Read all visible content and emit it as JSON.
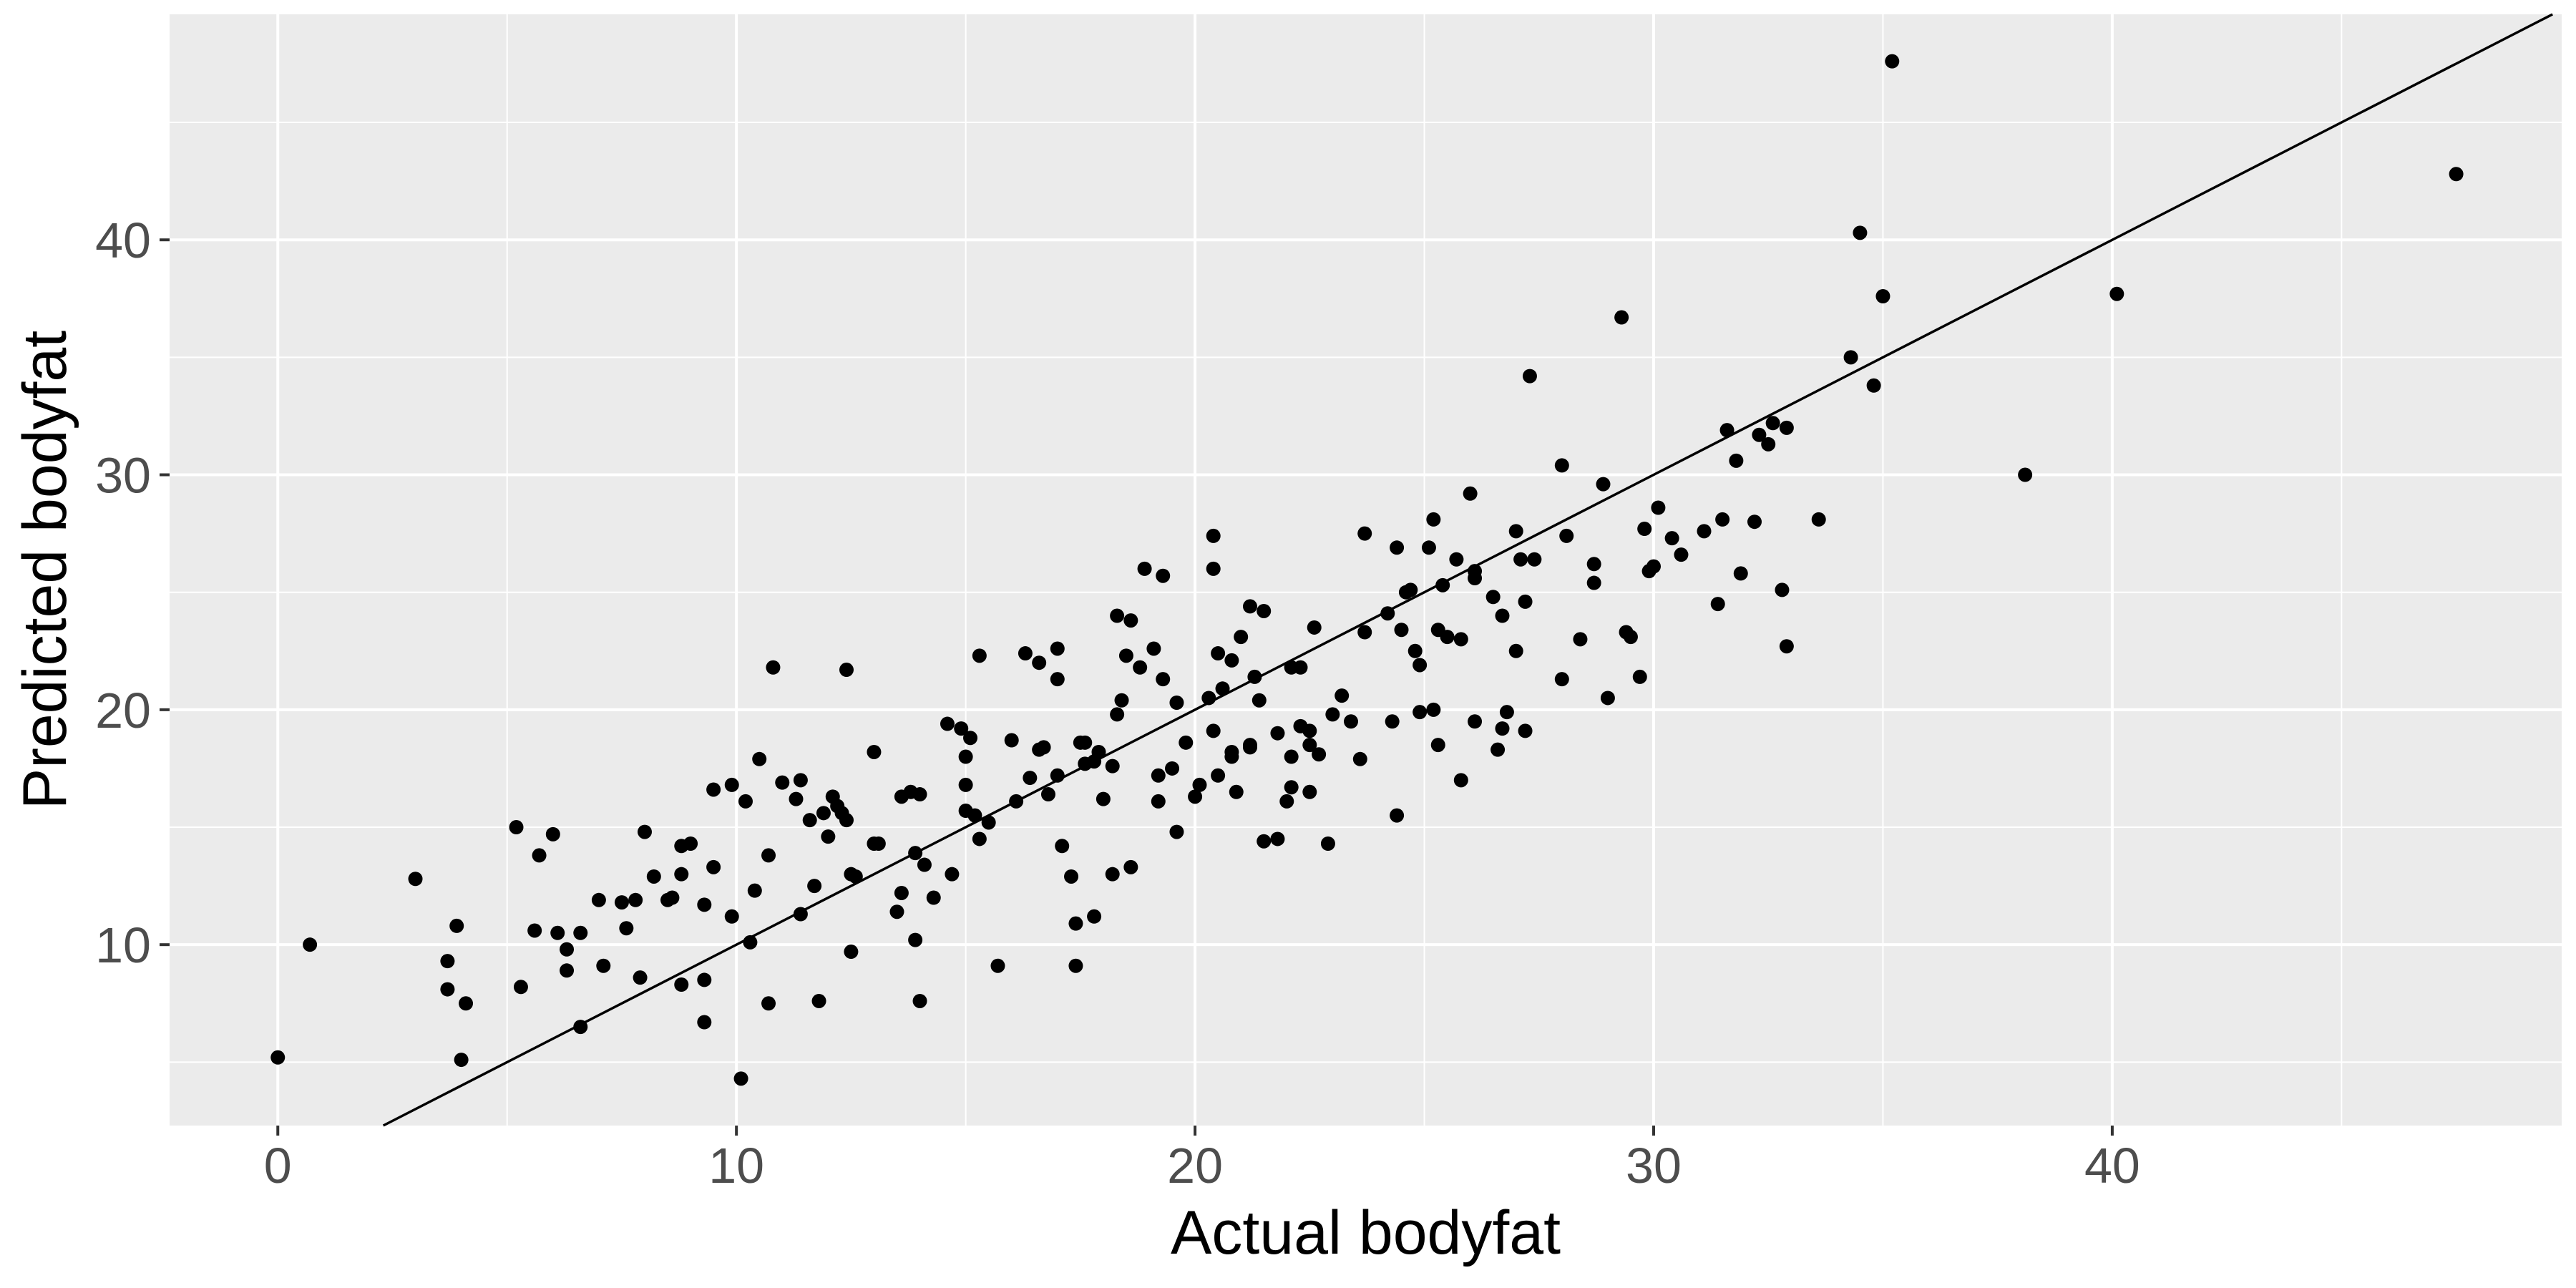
{
  "chart_data": {
    "type": "scatter",
    "xlabel": "Actual bodyfat",
    "ylabel": "Predicted bodyfat",
    "xlim": [
      -2.36,
      49.8
    ],
    "ylim": [
      2.3,
      49.6
    ],
    "x_ticks": [
      0,
      10,
      20,
      30,
      40
    ],
    "y_ticks": [
      10,
      20,
      30,
      40
    ],
    "x_tick_labels": [
      "0",
      "10",
      "20",
      "30",
      "40"
    ],
    "y_tick_labels": [
      "10",
      "20",
      "30",
      "40"
    ],
    "grid": true,
    "reference_line": {
      "slope": 1,
      "intercept": 0
    },
    "colors": {
      "panel": "#EBEBEB",
      "grid": "#FFFFFF",
      "point": "#000000",
      "line": "#000000",
      "tick_text": "#4D4D4D"
    },
    "points": [
      [
        0.0,
        5.2
      ],
      [
        0.7,
        10.0
      ],
      [
        3.0,
        12.8
      ],
      [
        3.7,
        9.3
      ],
      [
        3.7,
        8.1
      ],
      [
        3.9,
        10.8
      ],
      [
        4.0,
        5.1
      ],
      [
        4.1,
        7.5
      ],
      [
        5.2,
        15.0
      ],
      [
        5.3,
        8.2
      ],
      [
        5.6,
        10.6
      ],
      [
        5.7,
        13.8
      ],
      [
        6.0,
        14.7
      ],
      [
        6.1,
        10.5
      ],
      [
        6.3,
        8.9
      ],
      [
        6.3,
        9.8
      ],
      [
        6.6,
        10.5
      ],
      [
        6.6,
        6.5
      ],
      [
        7.0,
        11.9
      ],
      [
        7.1,
        9.1
      ],
      [
        7.5,
        11.8
      ],
      [
        7.6,
        10.7
      ],
      [
        7.8,
        11.9
      ],
      [
        7.9,
        8.6
      ],
      [
        8.0,
        14.8
      ],
      [
        8.2,
        12.9
      ],
      [
        8.5,
        11.9
      ],
      [
        8.6,
        12.0
      ],
      [
        8.8,
        13.0
      ],
      [
        8.8,
        14.2
      ],
      [
        8.8,
        8.3
      ],
      [
        9.0,
        14.3
      ],
      [
        9.3,
        8.5
      ],
      [
        9.3,
        11.7
      ],
      [
        9.3,
        6.7
      ],
      [
        9.5,
        13.3
      ],
      [
        9.5,
        16.6
      ],
      [
        9.9,
        16.8
      ],
      [
        9.9,
        11.2
      ],
      [
        10.1,
        4.3
      ],
      [
        10.2,
        16.1
      ],
      [
        10.4,
        12.3
      ],
      [
        10.3,
        10.1
      ],
      [
        10.5,
        17.9
      ],
      [
        10.7,
        13.8
      ],
      [
        10.7,
        7.5
      ],
      [
        10.8,
        21.8
      ],
      [
        11.0,
        16.9
      ],
      [
        11.4,
        17.0
      ],
      [
        11.3,
        16.2
      ],
      [
        11.4,
        11.3
      ],
      [
        11.6,
        15.3
      ],
      [
        11.7,
        12.5
      ],
      [
        11.9,
        15.6
      ],
      [
        11.8,
        7.6
      ],
      [
        12.0,
        14.6
      ],
      [
        12.1,
        16.3
      ],
      [
        12.2,
        15.9
      ],
      [
        12.3,
        15.6
      ],
      [
        12.4,
        15.3
      ],
      [
        12.4,
        21.7
      ],
      [
        12.5,
        13.0
      ],
      [
        12.6,
        12.9
      ],
      [
        12.5,
        9.7
      ],
      [
        13.0,
        14.3
      ],
      [
        13.0,
        18.2
      ],
      [
        13.1,
        14.3
      ],
      [
        13.6,
        16.3
      ],
      [
        13.5,
        11.4
      ],
      [
        13.6,
        12.2
      ],
      [
        13.8,
        16.5
      ],
      [
        13.9,
        13.9
      ],
      [
        13.9,
        10.2
      ],
      [
        14.0,
        16.4
      ],
      [
        14.0,
        7.6
      ],
      [
        14.1,
        13.4
      ],
      [
        14.3,
        12.0
      ],
      [
        14.6,
        19.4
      ],
      [
        14.7,
        13.0
      ],
      [
        14.9,
        19.2
      ],
      [
        15.0,
        18.0
      ],
      [
        15.0,
        16.8
      ],
      [
        15.0,
        15.7
      ],
      [
        15.1,
        18.8
      ],
      [
        15.2,
        15.5
      ],
      [
        15.3,
        14.5
      ],
      [
        15.3,
        22.3
      ],
      [
        15.5,
        15.2
      ],
      [
        15.7,
        9.1
      ],
      [
        16.0,
        18.7
      ],
      [
        16.1,
        16.1
      ],
      [
        16.3,
        22.4
      ],
      [
        16.4,
        17.1
      ],
      [
        16.6,
        22.0
      ],
      [
        16.6,
        18.3
      ],
      [
        16.7,
        18.4
      ],
      [
        16.8,
        16.4
      ],
      [
        17.0,
        17.2
      ],
      [
        17.0,
        21.3
      ],
      [
        17.0,
        22.6
      ],
      [
        17.1,
        14.2
      ],
      [
        17.3,
        12.9
      ],
      [
        17.4,
        10.9
      ],
      [
        17.4,
        9.1
      ],
      [
        17.5,
        18.6
      ],
      [
        17.6,
        17.7
      ],
      [
        17.6,
        18.6
      ],
      [
        17.8,
        11.2
      ],
      [
        17.8,
        17.8
      ],
      [
        17.9,
        18.2
      ],
      [
        18.0,
        16.2
      ],
      [
        18.2,
        17.6
      ],
      [
        18.2,
        13.0
      ],
      [
        18.3,
        19.8
      ],
      [
        18.3,
        24.0
      ],
      [
        18.4,
        20.4
      ],
      [
        18.5,
        22.3
      ],
      [
        18.6,
        13.3
      ],
      [
        18.6,
        23.8
      ],
      [
        18.8,
        21.8
      ],
      [
        18.9,
        26.0
      ],
      [
        19.1,
        22.6
      ],
      [
        19.2,
        16.1
      ],
      [
        19.2,
        17.2
      ],
      [
        19.3,
        21.3
      ],
      [
        19.3,
        25.7
      ],
      [
        19.5,
        17.5
      ],
      [
        19.6,
        14.8
      ],
      [
        19.6,
        20.3
      ],
      [
        19.8,
        18.6
      ],
      [
        20.0,
        16.3
      ],
      [
        20.1,
        16.8
      ],
      [
        20.3,
        20.5
      ],
      [
        20.4,
        27.4
      ],
      [
        20.4,
        26.0
      ],
      [
        20.4,
        19.1
      ],
      [
        20.5,
        17.2
      ],
      [
        20.5,
        22.4
      ],
      [
        20.6,
        20.9
      ],
      [
        20.8,
        18.2
      ],
      [
        20.8,
        18.0
      ],
      [
        20.8,
        22.1
      ],
      [
        20.9,
        16.5
      ],
      [
        21.0,
        23.1
      ],
      [
        21.2,
        24.4
      ],
      [
        21.2,
        18.5
      ],
      [
        21.2,
        18.4
      ],
      [
        21.3,
        21.4
      ],
      [
        21.4,
        20.4
      ],
      [
        21.5,
        24.2
      ],
      [
        21.5,
        14.4
      ],
      [
        21.8,
        19.0
      ],
      [
        21.8,
        14.5
      ],
      [
        22.0,
        16.1
      ],
      [
        22.1,
        21.8
      ],
      [
        22.1,
        18.0
      ],
      [
        22.1,
        16.7
      ],
      [
        22.3,
        19.3
      ],
      [
        22.3,
        21.8
      ],
      [
        22.5,
        16.5
      ],
      [
        22.5,
        18.5
      ],
      [
        22.5,
        19.1
      ],
      [
        22.6,
        23.5
      ],
      [
        22.7,
        18.1
      ],
      [
        22.9,
        14.3
      ],
      [
        23.0,
        19.8
      ],
      [
        23.2,
        20.6
      ],
      [
        23.4,
        19.5
      ],
      [
        23.7,
        27.5
      ],
      [
        23.6,
        17.9
      ],
      [
        23.7,
        23.3
      ],
      [
        24.2,
        24.1
      ],
      [
        24.3,
        19.5
      ],
      [
        24.4,
        26.9
      ],
      [
        24.4,
        15.5
      ],
      [
        24.5,
        23.4
      ],
      [
        24.6,
        25.0
      ],
      [
        24.7,
        25.1
      ],
      [
        24.8,
        22.5
      ],
      [
        24.9,
        19.9
      ],
      [
        24.9,
        21.9
      ],
      [
        25.1,
        26.9
      ],
      [
        25.2,
        20.0
      ],
      [
        25.2,
        28.1
      ],
      [
        25.3,
        18.5
      ],
      [
        25.3,
        23.4
      ],
      [
        25.4,
        25.3
      ],
      [
        25.5,
        23.1
      ],
      [
        25.7,
        26.4
      ],
      [
        25.8,
        23.0
      ],
      [
        25.8,
        17.0
      ],
      [
        26.0,
        29.2
      ],
      [
        26.1,
        19.5
      ],
      [
        26.1,
        25.9
      ],
      [
        26.1,
        25.6
      ],
      [
        26.5,
        24.8
      ],
      [
        26.6,
        18.3
      ],
      [
        26.7,
        19.2
      ],
      [
        26.7,
        24.0
      ],
      [
        26.8,
        19.9
      ],
      [
        27.0,
        27.6
      ],
      [
        27.0,
        22.5
      ],
      [
        27.1,
        26.4
      ],
      [
        27.2,
        24.6
      ],
      [
        27.2,
        19.1
      ],
      [
        27.3,
        34.2
      ],
      [
        27.4,
        26.4
      ],
      [
        28.0,
        21.3
      ],
      [
        28.0,
        30.4
      ],
      [
        28.1,
        27.4
      ],
      [
        28.4,
        23.0
      ],
      [
        28.7,
        26.2
      ],
      [
        28.7,
        25.4
      ],
      [
        28.9,
        29.6
      ],
      [
        29.0,
        20.5
      ],
      [
        29.3,
        36.7
      ],
      [
        29.4,
        23.3
      ],
      [
        29.5,
        23.1
      ],
      [
        29.7,
        21.4
      ],
      [
        29.8,
        27.7
      ],
      [
        29.9,
        25.9
      ],
      [
        30.0,
        26.1
      ],
      [
        30.1,
        28.6
      ],
      [
        30.4,
        27.3
      ],
      [
        30.6,
        26.6
      ],
      [
        31.1,
        27.6
      ],
      [
        31.4,
        24.5
      ],
      [
        31.5,
        28.1
      ],
      [
        31.6,
        31.9
      ],
      [
        31.8,
        30.6
      ],
      [
        31.9,
        25.8
      ],
      [
        32.2,
        28.0
      ],
      [
        32.3,
        31.7
      ],
      [
        32.5,
        31.3
      ],
      [
        32.6,
        32.2
      ],
      [
        32.8,
        25.1
      ],
      [
        32.9,
        32.0
      ],
      [
        32.9,
        22.7
      ],
      [
        33.6,
        28.1
      ],
      [
        34.3,
        35.0
      ],
      [
        34.5,
        40.3
      ],
      [
        34.8,
        33.8
      ],
      [
        35.0,
        37.6
      ],
      [
        35.2,
        47.6
      ],
      [
        38.1,
        30.0
      ],
      [
        40.1,
        37.7
      ],
      [
        47.5,
        42.8
      ]
    ]
  }
}
